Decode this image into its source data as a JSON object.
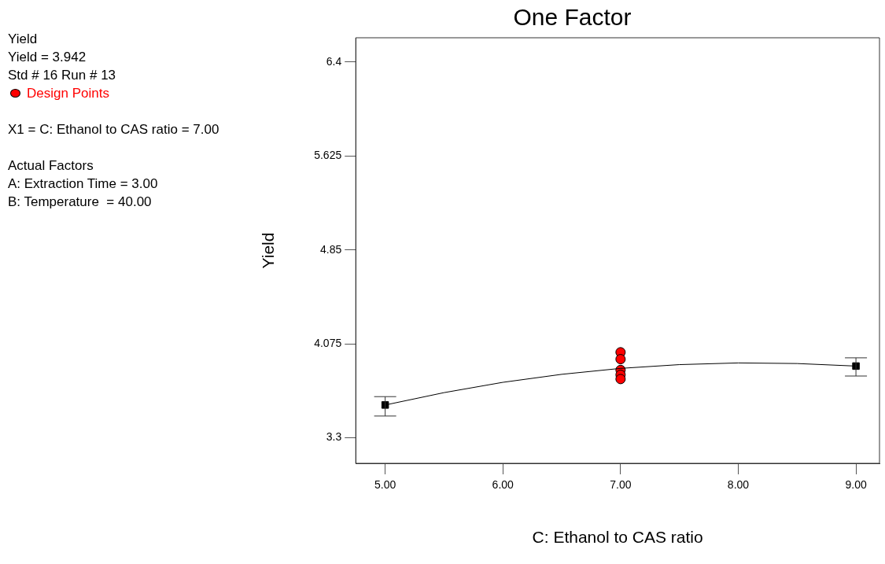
{
  "chart_data": {
    "type": "scatter",
    "title": "One Factor",
    "xlabel": "C: Ethanol to CAS ratio",
    "ylabel": "Yield",
    "annotations": [
      "Yield",
      "Yield = 3.942",
      "Std # 16 Run # 13",
      "X1 = C: Ethanol to CAS ratio = 7.00",
      "Actual Factors",
      "A: Extraction Time = 3.00",
      "B: Temperature  = 40.00"
    ],
    "xlim": [
      4.75,
      9.2
    ],
    "xticks": [
      {
        "value": 5,
        "label": "5.00"
      },
      {
        "value": 6,
        "label": "6.00"
      },
      {
        "value": 7,
        "label": "7.00"
      },
      {
        "value": 8,
        "label": "8.00"
      },
      {
        "value": 9,
        "label": "9.00"
      }
    ],
    "ylim": [
      3.09,
      6.6
    ],
    "yticks": [
      3.3,
      4.075,
      4.85,
      5.625,
      6.4
    ],
    "grid": false,
    "legend": "left",
    "series": [
      {
        "type": "line",
        "color": "#000000",
        "marker": "none",
        "x": [
          5,
          5.5,
          6,
          6.5,
          7,
          7.5,
          8,
          8.5,
          9
        ],
        "values": [
          3.571,
          3.673,
          3.758,
          3.824,
          3.873,
          3.904,
          3.918,
          3.913,
          3.892
        ]
      },
      {
        "color": "#000000",
        "marker": "square",
        "x": [
          5,
          9
        ],
        "values": [
          3.571,
          3.892
        ],
        "errors": [
          [
            3.48,
            3.64
          ],
          [
            3.81,
            3.96
          ]
        ]
      },
      {
        "name": "Design Points",
        "color": "#ff0000",
        "marker": "circle",
        "x": [
          7,
          7,
          7,
          7,
          7
        ],
        "values": [
          4.006,
          3.949,
          3.86,
          3.82,
          3.785
        ]
      }
    ]
  }
}
